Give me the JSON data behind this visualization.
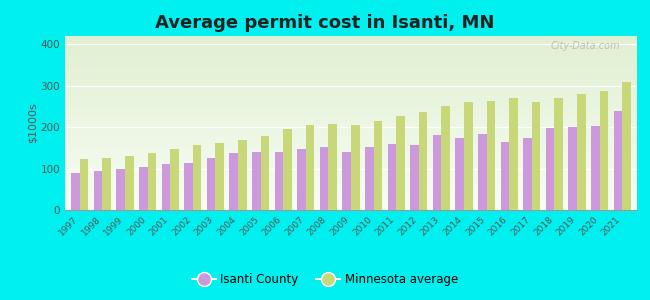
{
  "title": "Average permit cost in Isanti, MN",
  "ylabel": "$1000s",
  "background_color": "#00f0f0",
  "years": [
    1997,
    1998,
    1999,
    2000,
    2001,
    2002,
    2003,
    2004,
    2005,
    2006,
    2007,
    2008,
    2009,
    2010,
    2011,
    2012,
    2013,
    2014,
    2015,
    2016,
    2017,
    2018,
    2019,
    2020,
    2021
  ],
  "isanti": [
    90,
    95,
    100,
    105,
    110,
    113,
    125,
    138,
    140,
    140,
    148,
    152,
    140,
    152,
    160,
    158,
    180,
    173,
    183,
    165,
    175,
    198,
    200,
    202,
    238
  ],
  "mn_avg": [
    122,
    125,
    130,
    138,
    148,
    158,
    162,
    170,
    178,
    195,
    205,
    207,
    205,
    215,
    228,
    237,
    252,
    260,
    263,
    270,
    260,
    270,
    280,
    288,
    308
  ],
  "isanti_color": "#cc99dd",
  "mn_color": "#c8d878",
  "ylim": [
    0,
    420
  ],
  "yticks": [
    0,
    100,
    200,
    300,
    400
  ],
  "bar_width": 0.38,
  "title_fontsize": 13,
  "watermark": "City-Data.com",
  "legend_labels": [
    "Isanti County",
    "Minnesota average"
  ]
}
